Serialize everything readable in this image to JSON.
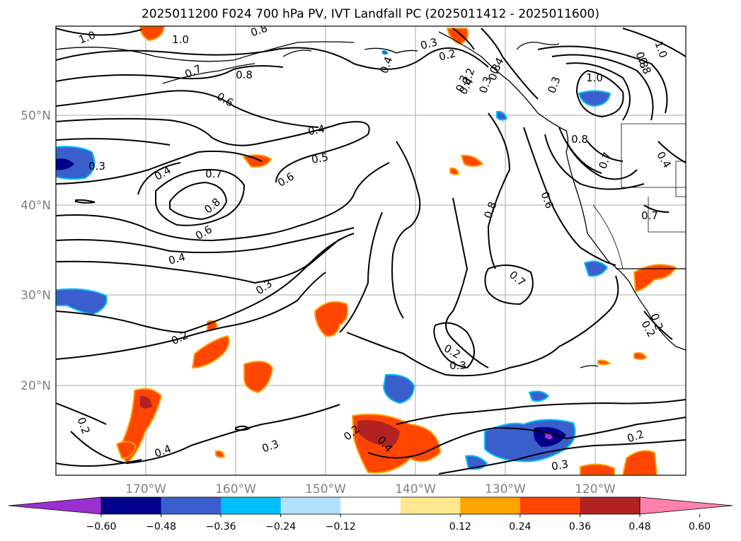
{
  "title": "2025011200 F024 700 hPa PV, IVT Landfall PC (2025011412 - 2025011600)",
  "lat_labels": [
    "50°N",
    "40°N",
    "30°N",
    "20°N"
  ],
  "lon_labels": [
    "170°W",
    "160°W",
    "150°W",
    "140°W",
    "130°W",
    "120°W"
  ],
  "contour_labels": [
    "1.0",
    "1.0",
    "0.8",
    "0.7",
    "0.8",
    "0.6",
    "0.4",
    "0.5",
    "0.6",
    "0.4",
    "0.7",
    "0.8",
    "0.6",
    "0.4",
    "0.3",
    "0.3",
    "0.2",
    "0.2",
    "0.4",
    "0.2",
    "0.4",
    "0.3",
    "0.2",
    "0.3",
    "0.2",
    "0.3",
    "0.2",
    "0.4",
    "0.3",
    "1.0",
    "0.8",
    "0.7",
    "0.6",
    "0.8",
    "0.8",
    "0.7",
    "0.3",
    "0.7",
    "0.2",
    "0.4",
    "0.2",
    "0.3",
    "0.2",
    "0.3",
    "0.3",
    "0.4",
    "0.4",
    "1.0",
    "0.8"
  ],
  "colorbar": {
    "ticks": [
      "−0.60",
      "−0.48",
      "−0.36",
      "−0.24",
      "−0.12",
      "0.12",
      "0.24",
      "0.36",
      "0.48",
      "0.60"
    ],
    "colors": [
      "#9b30d0",
      "#00008b",
      "#3a5fcd",
      "#00bfff",
      "#b0e2ff",
      "#ffffff",
      "#ffe78f",
      "#ffa500",
      "#ff4500",
      "#b22222",
      "#ff82ab"
    ]
  }
}
